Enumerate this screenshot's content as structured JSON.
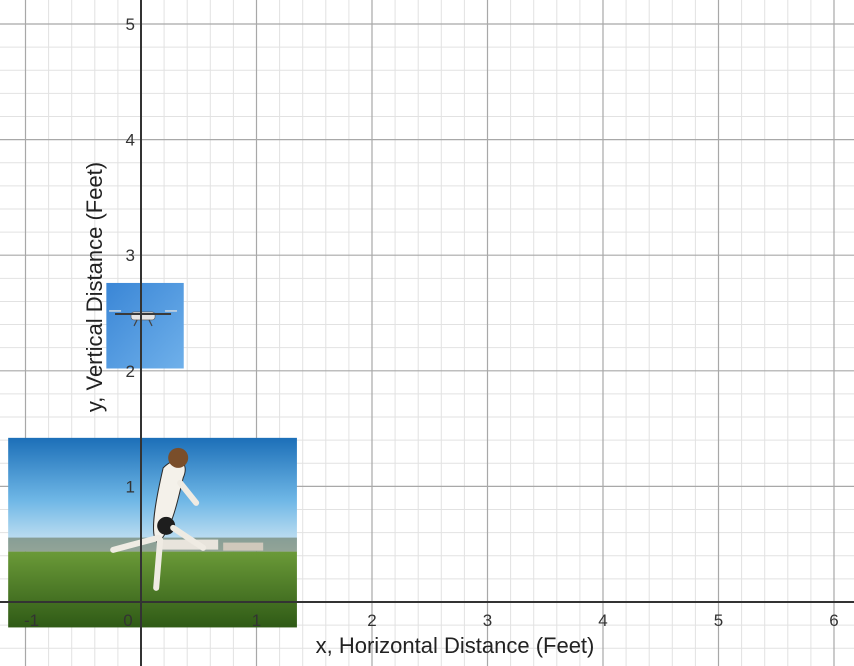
{
  "chart_data": {
    "type": "scatter",
    "xlabel": "x, Horizontal Distance (Feet)",
    "ylabel": "y, Vertical Distance (Feet)",
    "xlim": [
      -1.15,
      6.15
    ],
    "ylim": [
      -0.55,
      5.15
    ],
    "x_ticks": [
      -1,
      0,
      1,
      2,
      3,
      4,
      5,
      6
    ],
    "y_ticks": [
      1,
      2,
      3,
      4,
      5
    ],
    "x_tick_labels": [
      "-1",
      "0",
      "1",
      "2",
      "3",
      "4",
      "5",
      "6"
    ],
    "y_tick_labels": [
      "1",
      "2",
      "3",
      "4",
      "5"
    ],
    "major_grid": true,
    "minor_grid": true,
    "minor_per_major": 5,
    "images": [
      {
        "subject": "dog-jumping-photo",
        "x_range": [
          -1.15,
          1.35
        ],
        "y_range": [
          -0.22,
          1.42
        ]
      },
      {
        "subject": "drone-in-sky-photo",
        "x_range": [
          -0.3,
          0.37
        ],
        "y_range": [
          2.02,
          2.76
        ]
      }
    ],
    "colors": {
      "major_grid": "#a8a8a8",
      "minor_grid": "#e2e2e2",
      "axis": "#333333",
      "sky": "#2f8fd0",
      "grass": "#4f7a25"
    }
  }
}
